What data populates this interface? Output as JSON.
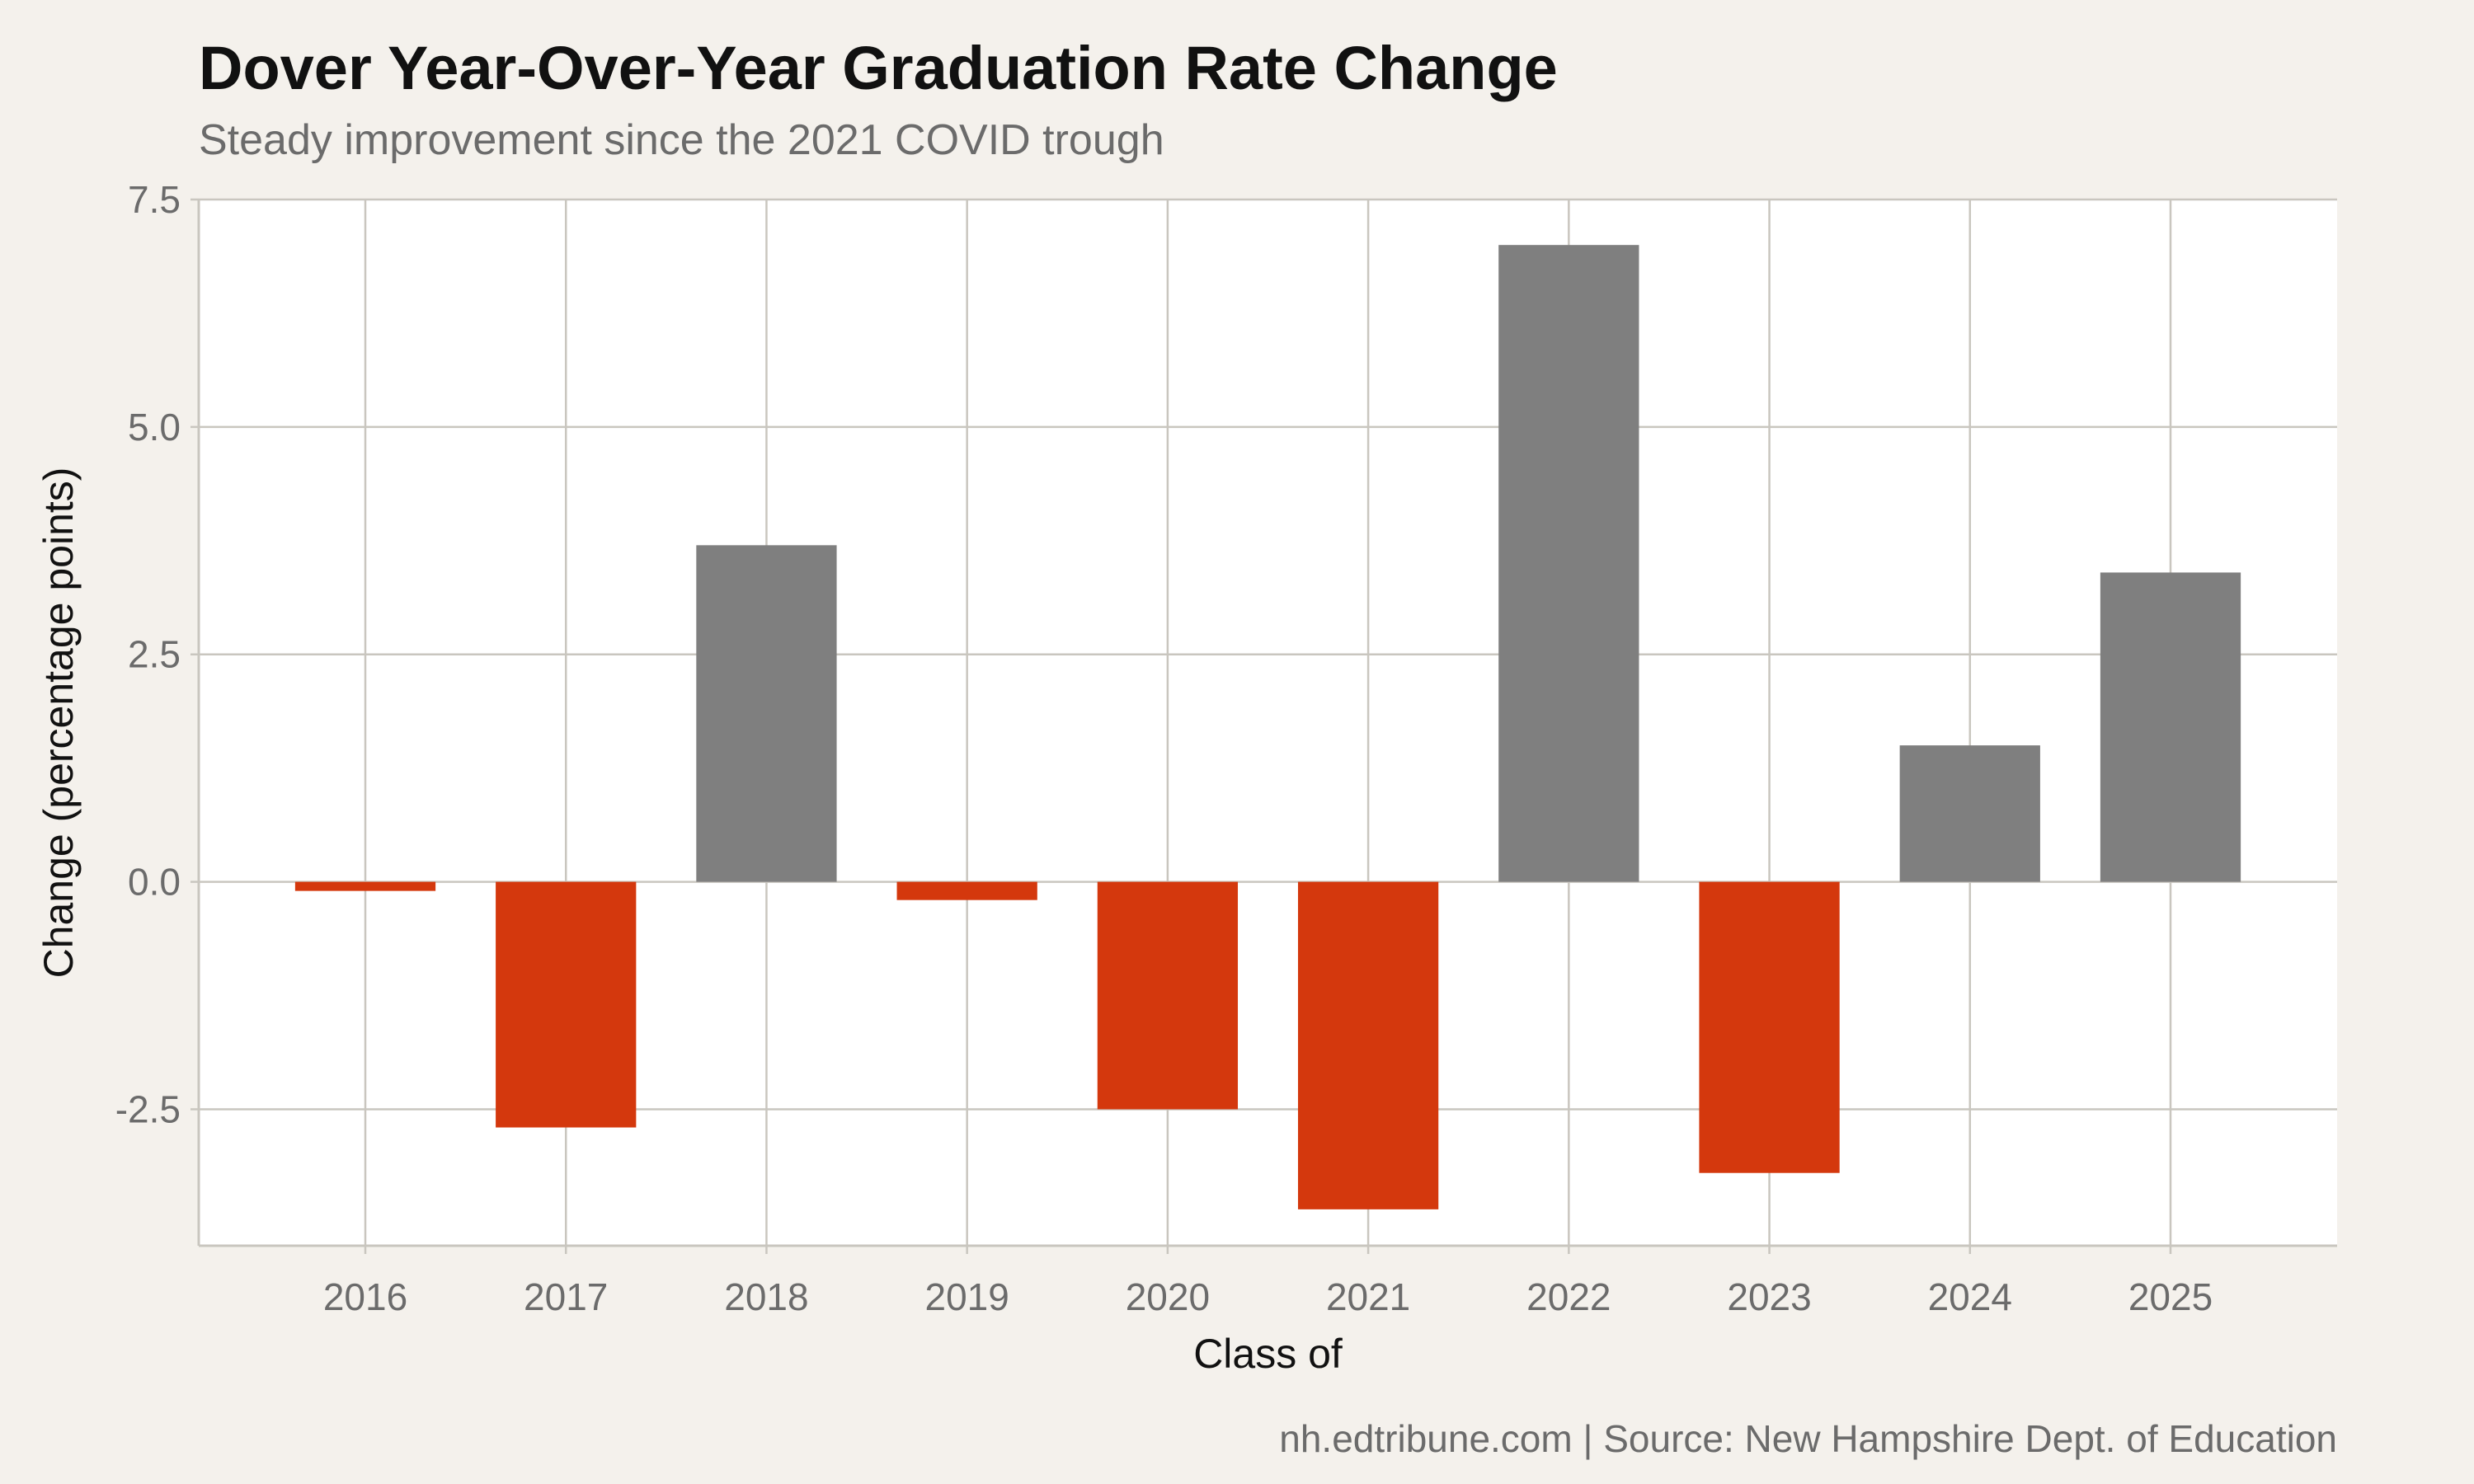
{
  "chart_data": {
    "type": "bar",
    "title": "Dover Year-Over-Year Graduation Rate Change",
    "subtitle": "Steady improvement since the 2021 COVID trough",
    "xlabel": "Class of",
    "ylabel": "Change (percentage points)",
    "caption": "nh.edtribune.com | Source: New Hampshire Dept. of Education",
    "categories": [
      "2016",
      "2017",
      "2018",
      "2019",
      "2020",
      "2021",
      "2022",
      "2023",
      "2024",
      "2025"
    ],
    "values": [
      -0.1,
      -2.7,
      3.7,
      -0.2,
      -2.5,
      -3.6,
      7.0,
      -3.2,
      1.5,
      3.4
    ],
    "ylim": [
      -4.0,
      7.5
    ],
    "yticks": [
      -2.5,
      0.0,
      2.5,
      5.0,
      7.5
    ],
    "ytick_labels": [
      "-2.5",
      "0.0",
      "2.5",
      "5.0",
      "7.5"
    ],
    "grid": true,
    "legend": "none",
    "colors": {
      "positive": "#7f7f7f",
      "negative": "#d4380d",
      "panel": "#ffffff",
      "background": "#f4f1ec",
      "grid": "#c9c6bf"
    }
  }
}
